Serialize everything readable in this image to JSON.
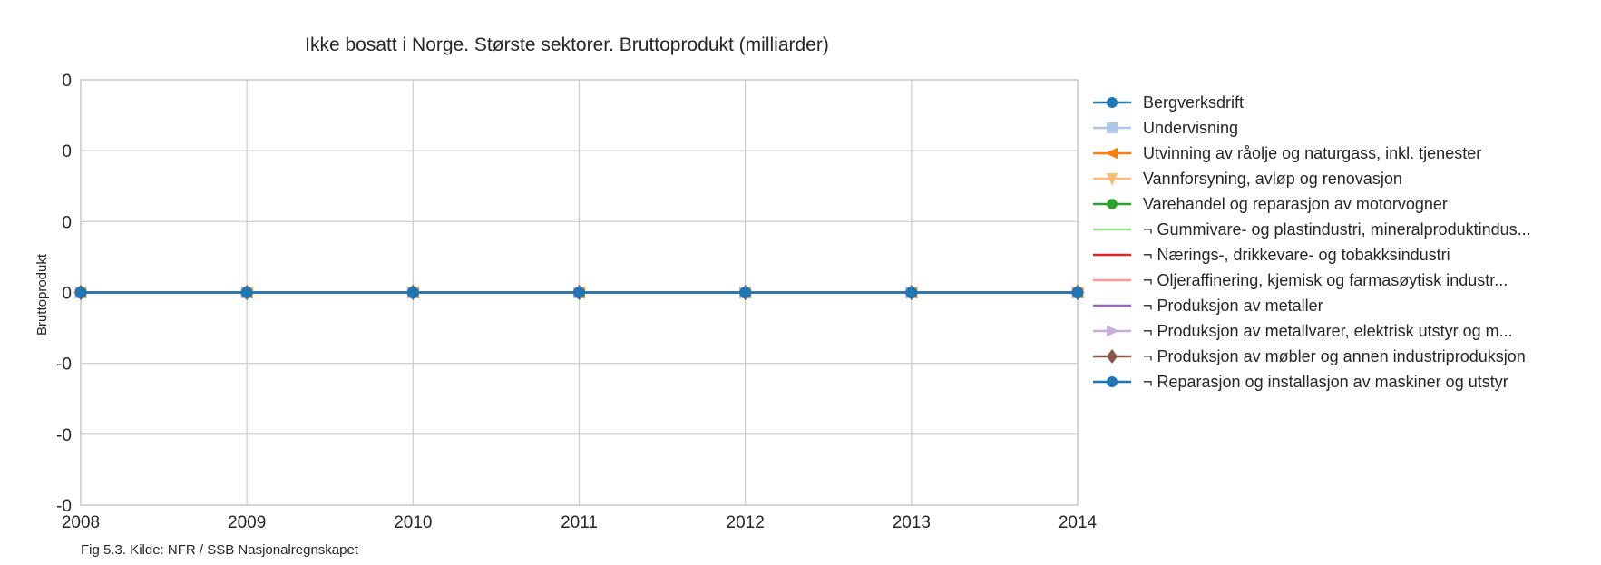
{
  "chart_data": {
    "type": "line",
    "title": "Ikke bosatt i Norge. Største sektorer. Bruttoprodukt (milliarder)",
    "xlabel": "",
    "ylabel": "Bruttoprodukt",
    "caption": "Fig 5.3. Kilde: NFR / SSB Nasjonalregnskapet",
    "x": [
      2008,
      2009,
      2010,
      2011,
      2012,
      2013,
      2014
    ],
    "x_tick_labels": [
      "2008",
      "2009",
      "2010",
      "2011",
      "2012",
      "2013",
      "2014"
    ],
    "xlim": [
      2008,
      2014
    ],
    "ylim": [
      -0.06,
      0.06
    ],
    "y_ticks": [
      0.06,
      0.04,
      0.02,
      0,
      -0.02,
      -0.04,
      -0.06
    ],
    "y_tick_labels": [
      "0",
      "0",
      "0",
      "0",
      "-0",
      "-0",
      "-0"
    ],
    "grid": true,
    "legend_position": "right",
    "series": [
      {
        "name": "Bergverksdrift",
        "color": "#1f77b4",
        "marker": "circle",
        "values": [
          0,
          0,
          0,
          0,
          0,
          0,
          0
        ]
      },
      {
        "name": "Undervisning",
        "color": "#aec7e8",
        "marker": "square",
        "values": [
          0,
          0,
          0,
          0,
          0,
          0,
          0
        ]
      },
      {
        "name": "Utvinning av råolje og naturgass, inkl. tjenester",
        "color": "#ff7f0e",
        "marker": "triangle-left",
        "values": [
          0,
          0,
          0,
          0,
          0,
          0,
          0
        ]
      },
      {
        "name": "Vannforsyning, avløp og renovasjon",
        "color": "#ffbb78",
        "marker": "triangle-down",
        "values": [
          0,
          0,
          0,
          0,
          0,
          0,
          0
        ]
      },
      {
        "name": "Varehandel og reparasjon av motorvogner",
        "color": "#2ca02c",
        "marker": "octagon",
        "values": [
          0,
          0,
          0,
          0,
          0,
          0,
          0
        ]
      },
      {
        "name": "¬ Gummivare- og plastindustri, mineralproduktindus...",
        "color": "#98df8a",
        "marker": "none",
        "values": [
          0,
          0,
          0,
          0,
          0,
          0,
          0
        ]
      },
      {
        "name": "¬ Nærings-, drikkevare- og tobakksindustri",
        "color": "#d62728",
        "marker": "none",
        "values": [
          0,
          0,
          0,
          0,
          0,
          0,
          0
        ]
      },
      {
        "name": "¬ Oljeraffinering, kjemisk og farmasøytisk industr...",
        "color": "#ff9896",
        "marker": "none",
        "values": [
          0,
          0,
          0,
          0,
          0,
          0,
          0
        ]
      },
      {
        "name": "¬ Produksjon av metaller",
        "color": "#9467bd",
        "marker": "none",
        "values": [
          0,
          0,
          0,
          0,
          0,
          0,
          0
        ]
      },
      {
        "name": "¬ Produksjon av metallvarer, elektrisk utstyr og m...",
        "color": "#c5b0d5",
        "marker": "triangle-right",
        "values": [
          0,
          0,
          0,
          0,
          0,
          0,
          0
        ]
      },
      {
        "name": "¬ Produksjon av møbler og annen industriproduksjon",
        "color": "#8c564b",
        "marker": "diamond",
        "values": [
          0,
          0,
          0,
          0,
          0,
          0,
          0
        ]
      },
      {
        "name": "¬ Reparasjon og installasjon av maskiner og utstyr",
        "color": "#1f77b4",
        "marker": "circle",
        "values": [
          0,
          0,
          0,
          0,
          0,
          0,
          0
        ]
      }
    ]
  }
}
